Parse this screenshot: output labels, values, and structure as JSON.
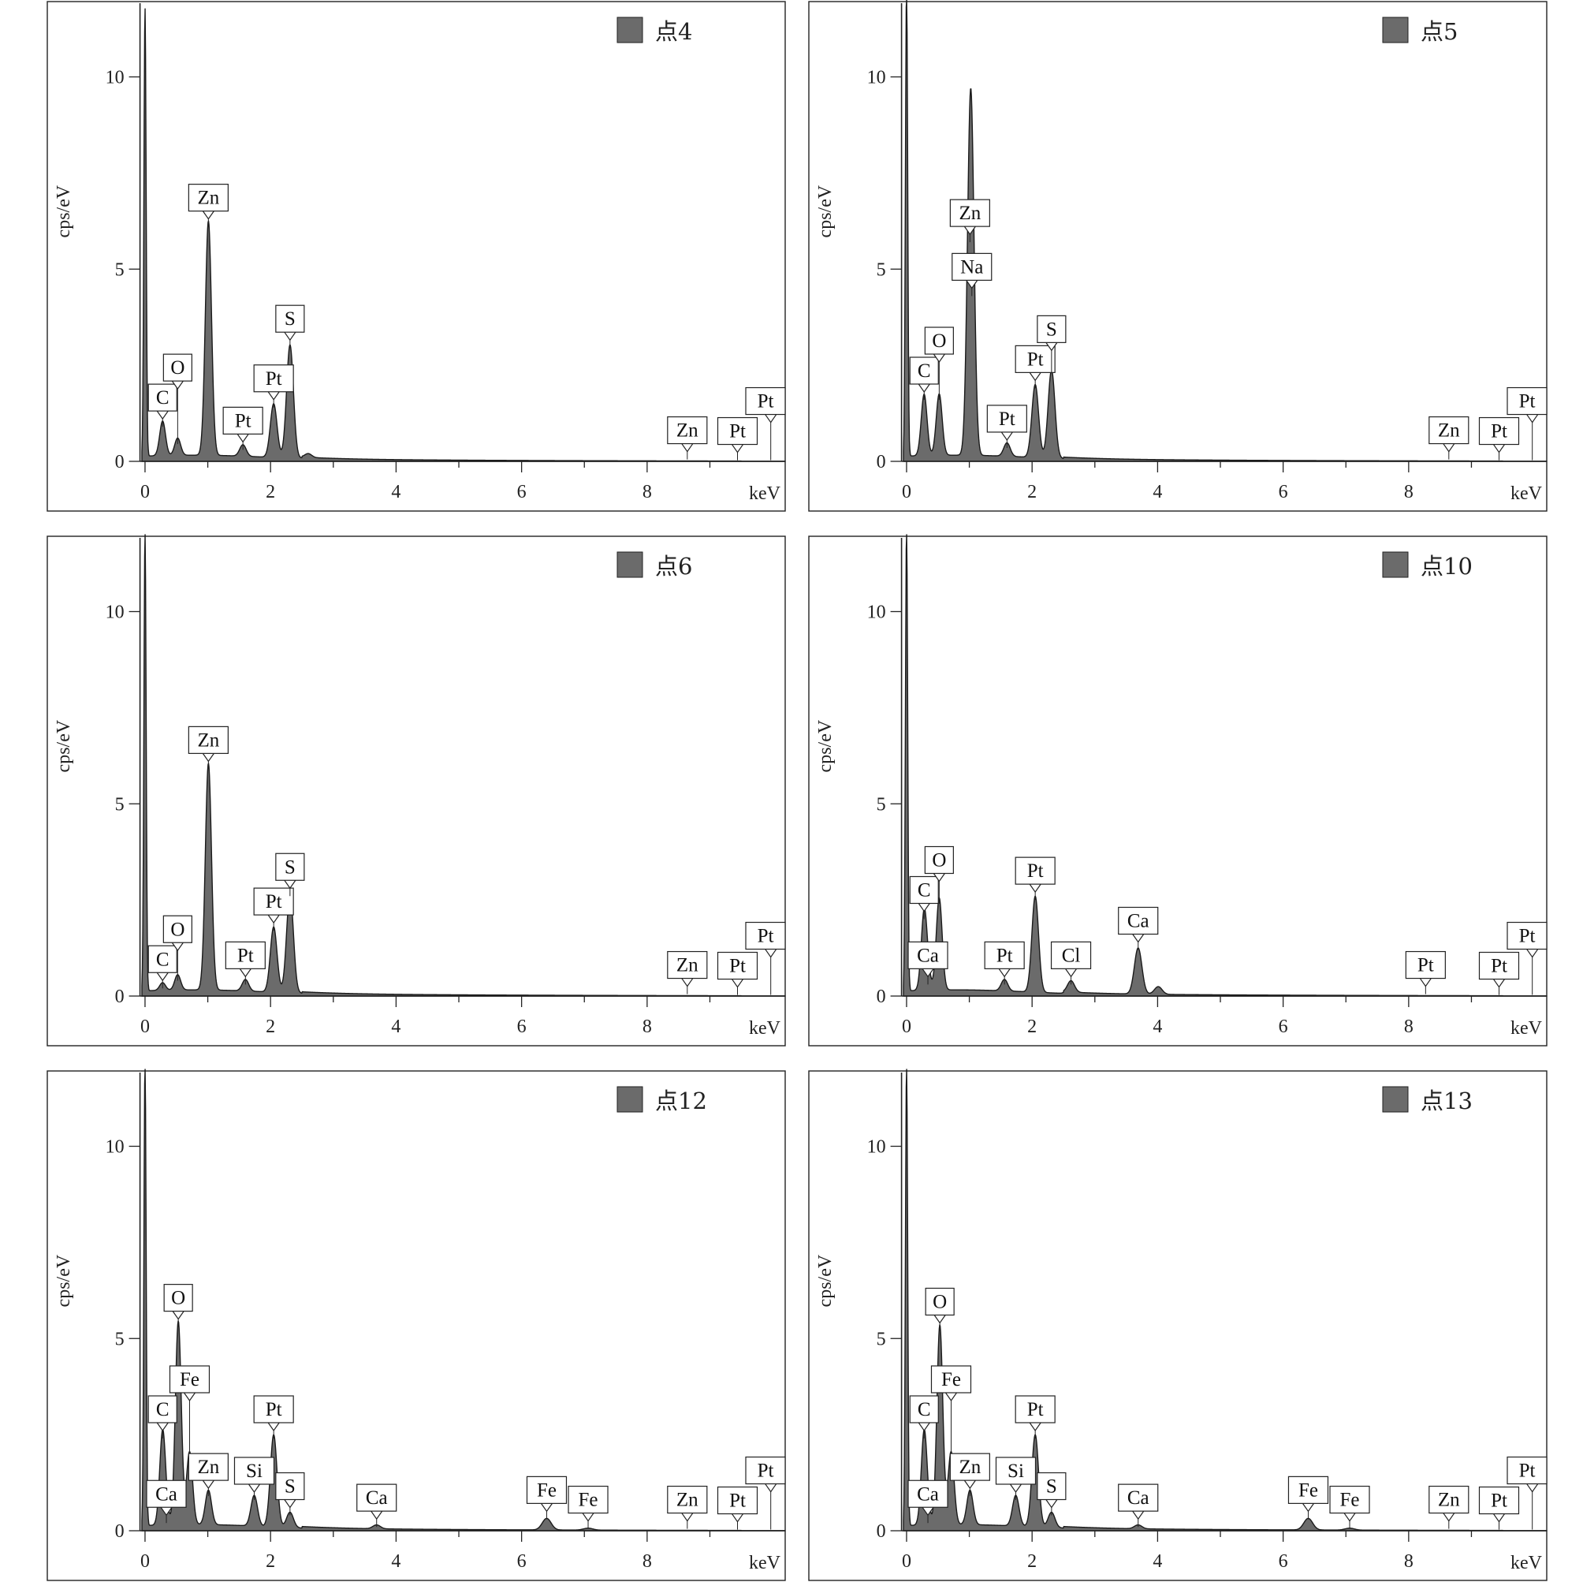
{
  "chart_data": [
    {
      "type": "area",
      "legend": "点4",
      "xlabel": "keV",
      "ylabel": "cps/eV",
      "xlim": [
        -0.1,
        10.2
      ],
      "ylim": [
        0,
        12
      ],
      "x_ticks": [
        0,
        2,
        4,
        6,
        8
      ],
      "y_ticks": [
        0,
        5,
        10
      ],
      "legend_position": "top-right",
      "color": "#6b6b6b",
      "peaks": [
        [
          0.0,
          11.8
        ],
        [
          0.28,
          0.9
        ],
        [
          0.52,
          0.45
        ],
        [
          1.01,
          6.1
        ],
        [
          1.56,
          0.3
        ],
        [
          2.05,
          1.4
        ],
        [
          2.31,
          2.95
        ],
        [
          2.6,
          0.1
        ]
      ],
      "annotations": [
        {
          "label": "C",
          "x": 0.28,
          "y": 0.9
        },
        {
          "label": "O",
          "x": 0.52,
          "y": 0.45
        },
        {
          "label": "Zn",
          "x": 1.01,
          "y": 6.1
        },
        {
          "label": "Pt",
          "x": 1.56,
          "y": 0.3
        },
        {
          "label": "Pt",
          "x": 2.05,
          "y": 1.4
        },
        {
          "label": "S",
          "x": 2.31,
          "y": 2.95
        },
        {
          "label": "Zn",
          "x": 8.64,
          "y": 0.05
        },
        {
          "label": "Pt",
          "x": 9.44,
          "y": 0.03
        },
        {
          "label": "Pt",
          "x": 9.97,
          "y": 0.03
        }
      ]
    },
    {
      "type": "area",
      "legend": "点5",
      "xlabel": "keV",
      "ylabel": "cps/eV",
      "xlim": [
        -0.1,
        10.2
      ],
      "ylim": [
        0,
        12
      ],
      "x_ticks": [
        0,
        2,
        4,
        6,
        8
      ],
      "y_ticks": [
        0,
        5,
        10
      ],
      "legend_position": "top-right",
      "color": "#6b6b6b",
      "peaks": [
        [
          0.0,
          12.5
        ],
        [
          0.28,
          1.6
        ],
        [
          0.52,
          1.6
        ],
        [
          1.01,
          5.7
        ],
        [
          1.04,
          4.3
        ],
        [
          1.6,
          0.35
        ],
        [
          2.05,
          1.9
        ],
        [
          2.31,
          2.3
        ]
      ],
      "annotations": [
        {
          "label": "C",
          "x": 0.28,
          "y": 1.6
        },
        {
          "label": "O",
          "x": 0.52,
          "y": 1.6
        },
        {
          "label": "Zn",
          "x": 1.01,
          "y": 5.7
        },
        {
          "label": "Na",
          "x": 1.04,
          "y": 4.3
        },
        {
          "label": "Pt",
          "x": 1.6,
          "y": 0.35
        },
        {
          "label": "Pt",
          "x": 2.05,
          "y": 1.9
        },
        {
          "label": "S",
          "x": 2.31,
          "y": 2.3
        },
        {
          "label": "Zn",
          "x": 8.64,
          "y": 0.05
        },
        {
          "label": "Pt",
          "x": 9.44,
          "y": 0.03
        },
        {
          "label": "Pt",
          "x": 9.97,
          "y": 0.03
        }
      ]
    },
    {
      "type": "area",
      "legend": "点6",
      "xlabel": "keV",
      "ylabel": "cps/eV",
      "xlim": [
        -0.1,
        10.2
      ],
      "ylim": [
        0,
        12
      ],
      "x_ticks": [
        0,
        2,
        4,
        6,
        8
      ],
      "y_ticks": [
        0,
        5,
        10
      ],
      "legend_position": "top-right",
      "color": "#6b6b6b",
      "peaks": [
        [
          0.0,
          12.1
        ],
        [
          0.28,
          0.2
        ],
        [
          0.52,
          0.4
        ],
        [
          1.01,
          5.9
        ],
        [
          1.6,
          0.3
        ],
        [
          2.05,
          1.7
        ],
        [
          2.31,
          2.6
        ]
      ],
      "annotations": [
        {
          "label": "C",
          "x": 0.28,
          "y": 0.2
        },
        {
          "label": "O",
          "x": 0.52,
          "y": 0.4
        },
        {
          "label": "Zn",
          "x": 1.01,
          "y": 5.9
        },
        {
          "label": "Pt",
          "x": 1.6,
          "y": 0.3
        },
        {
          "label": "Pt",
          "x": 2.05,
          "y": 1.7
        },
        {
          "label": "S",
          "x": 2.31,
          "y": 2.6
        },
        {
          "label": "Zn",
          "x": 8.64,
          "y": 0.05
        },
        {
          "label": "Pt",
          "x": 9.44,
          "y": 0.03
        },
        {
          "label": "Pt",
          "x": 9.97,
          "y": 0.03
        }
      ]
    },
    {
      "type": "area",
      "legend": "点10",
      "xlabel": "keV",
      "ylabel": "cps/eV",
      "xlim": [
        -0.1,
        10.2
      ],
      "ylim": [
        0,
        12
      ],
      "x_ticks": [
        0,
        2,
        4,
        6,
        8
      ],
      "y_ticks": [
        0,
        5,
        10
      ],
      "legend_position": "top-right",
      "color": "#6b6b6b",
      "peaks": [
        [
          0.0,
          12.3
        ],
        [
          0.28,
          2.0
        ],
        [
          0.52,
          2.4
        ],
        [
          0.34,
          0.3
        ],
        [
          1.56,
          0.3
        ],
        [
          2.05,
          2.5
        ],
        [
          2.62,
          0.3
        ],
        [
          3.69,
          1.2
        ],
        [
          4.01,
          0.2
        ]
      ],
      "annotations": [
        {
          "label": "C",
          "x": 0.28,
          "y": 2.0
        },
        {
          "label": "O",
          "x": 0.52,
          "y": 2.4
        },
        {
          "label": "Ca",
          "x": 0.34,
          "y": 0.3
        },
        {
          "label": "Pt",
          "x": 1.56,
          "y": 0.3
        },
        {
          "label": "Pt",
          "x": 2.05,
          "y": 2.5
        },
        {
          "label": "Cl",
          "x": 2.62,
          "y": 0.3
        },
        {
          "label": "Ca",
          "x": 3.69,
          "y": 1.2
        },
        {
          "label": "Pt",
          "x": 8.27,
          "y": 0.05
        },
        {
          "label": "Pt",
          "x": 9.44,
          "y": 0.03
        },
        {
          "label": "Pt",
          "x": 9.97,
          "y": 0.03
        }
      ]
    },
    {
      "type": "area",
      "legend": "点12",
      "xlabel": "keV",
      "ylabel": "cps/eV",
      "xlim": [
        -0.1,
        10.2
      ],
      "ylim": [
        0,
        12
      ],
      "x_ticks": [
        0,
        2,
        4,
        6,
        8
      ],
      "y_ticks": [
        0,
        5,
        10
      ],
      "legend_position": "top-right",
      "color": "#6b6b6b",
      "peaks": [
        [
          0.0,
          12.3
        ],
        [
          0.28,
          2.4
        ],
        [
          0.34,
          0.2
        ],
        [
          0.53,
          5.3
        ],
        [
          0.71,
          1.9
        ],
        [
          1.01,
          0.9
        ],
        [
          1.74,
          0.8
        ],
        [
          2.05,
          2.4
        ],
        [
          2.31,
          0.4
        ],
        [
          3.69,
          0.1
        ],
        [
          6.4,
          0.3
        ],
        [
          7.06,
          0.05
        ]
      ],
      "annotations": [
        {
          "label": "C",
          "x": 0.28,
          "y": 2.4
        },
        {
          "label": "Ca",
          "x": 0.34,
          "y": 0.2
        },
        {
          "label": "O",
          "x": 0.53,
          "y": 5.3
        },
        {
          "label": "Fe",
          "x": 0.71,
          "y": 1.9
        },
        {
          "label": "Zn",
          "x": 1.01,
          "y": 0.9
        },
        {
          "label": "Si",
          "x": 1.74,
          "y": 0.8
        },
        {
          "label": "Pt",
          "x": 2.05,
          "y": 2.4
        },
        {
          "label": "S",
          "x": 2.31,
          "y": 0.4
        },
        {
          "label": "Ca",
          "x": 3.69,
          "y": 0.1
        },
        {
          "label": "Fe",
          "x": 6.4,
          "y": 0.3
        },
        {
          "label": "Fe",
          "x": 7.06,
          "y": 0.05
        },
        {
          "label": "Zn",
          "x": 8.64,
          "y": 0.05
        },
        {
          "label": "Pt",
          "x": 9.44,
          "y": 0.03
        },
        {
          "label": "Pt",
          "x": 9.97,
          "y": 0.03
        }
      ]
    },
    {
      "type": "area",
      "legend": "点13",
      "xlabel": "keV",
      "ylabel": "cps/eV",
      "xlim": [
        -0.1,
        10.2
      ],
      "ylim": [
        0,
        12
      ],
      "x_ticks": [
        0,
        2,
        4,
        6,
        8
      ],
      "y_ticks": [
        0,
        5,
        10
      ],
      "legend_position": "top-right",
      "color": "#6b6b6b",
      "peaks": [
        [
          0.0,
          12.2
        ],
        [
          0.28,
          2.4
        ],
        [
          0.34,
          0.2
        ],
        [
          0.53,
          5.2
        ],
        [
          0.71,
          1.9
        ],
        [
          1.01,
          0.9
        ],
        [
          1.74,
          0.8
        ],
        [
          2.05,
          2.4
        ],
        [
          2.31,
          0.4
        ],
        [
          3.69,
          0.1
        ],
        [
          6.4,
          0.3
        ],
        [
          7.06,
          0.05
        ]
      ],
      "annotations": [
        {
          "label": "C",
          "x": 0.28,
          "y": 2.4
        },
        {
          "label": "Ca",
          "x": 0.34,
          "y": 0.2
        },
        {
          "label": "O",
          "x": 0.53,
          "y": 5.2
        },
        {
          "label": "Fe",
          "x": 0.71,
          "y": 1.9
        },
        {
          "label": "Zn",
          "x": 1.01,
          "y": 0.9
        },
        {
          "label": "Si",
          "x": 1.74,
          "y": 0.8
        },
        {
          "label": "Pt",
          "x": 2.05,
          "y": 2.4
        },
        {
          "label": "S",
          "x": 2.31,
          "y": 0.4
        },
        {
          "label": "Ca",
          "x": 3.69,
          "y": 0.1
        },
        {
          "label": "Fe",
          "x": 6.4,
          "y": 0.3
        },
        {
          "label": "Fe",
          "x": 7.06,
          "y": 0.05
        },
        {
          "label": "Zn",
          "x": 8.64,
          "y": 0.05
        },
        {
          "label": "Pt",
          "x": 9.44,
          "y": 0.03
        },
        {
          "label": "Pt",
          "x": 9.97,
          "y": 0.03
        }
      ]
    }
  ]
}
